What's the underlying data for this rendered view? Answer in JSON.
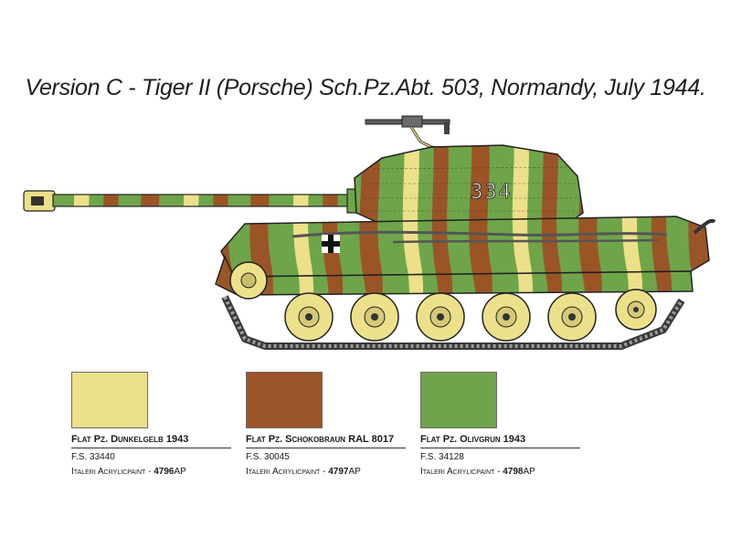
{
  "title": "Version C - Tiger II (Porsche) Sch.Pz.Abt. 503, Normandy, July 1944.",
  "turret_number": "334",
  "colors": [
    {
      "name": "Flat Pz. Dunkelgelb 1943",
      "fs": "F.S. 33440",
      "brand": "Italeri Acrylicpaint - ",
      "code": "4796",
      "code_suffix": "AP",
      "hex": "#ECE08A"
    },
    {
      "name": "Flat Pz. Schokobraun RAL 8017",
      "fs": "F.S. 30045",
      "brand": "Italeri Acrylicpaint - ",
      "code": "4797",
      "code_suffix": "AP",
      "hex": "#9A5428"
    },
    {
      "name": "Flat Pz. Olivgrun 1943",
      "fs": "F.S. 34128",
      "brand": "Italeri Acrylicpaint - ",
      "code": "4798",
      "code_suffix": "AP",
      "hex": "#6EA54A"
    }
  ]
}
